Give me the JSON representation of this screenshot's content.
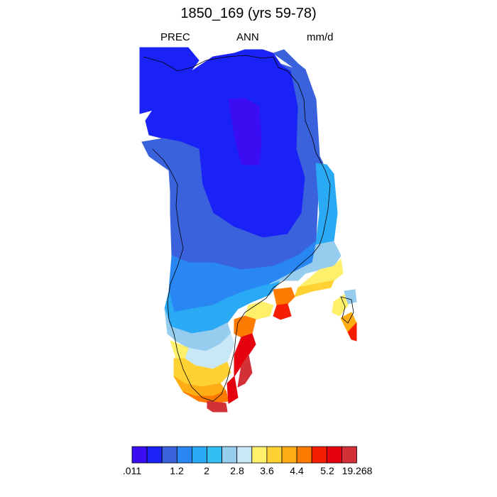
{
  "title": "1850_169 (yrs 59-78)",
  "subtitle": {
    "left": "PREC",
    "center": "ANN",
    "right": "mm/d"
  },
  "colorbar": {
    "colors": [
      "#3b0ef2",
      "#1a22f5",
      "#3a62dc",
      "#2887f3",
      "#2aa9f4",
      "#33bff3",
      "#96cdee",
      "#c9e8f7",
      "#fff06b",
      "#ffd133",
      "#ffad14",
      "#ff7b00",
      "#f51e05",
      "#e6010e",
      "#d43038"
    ],
    "labels": [
      ".011",
      "1.2",
      "2",
      "2.8",
      "3.6",
      "4.4",
      "5.2",
      "19.268"
    ]
  }
}
